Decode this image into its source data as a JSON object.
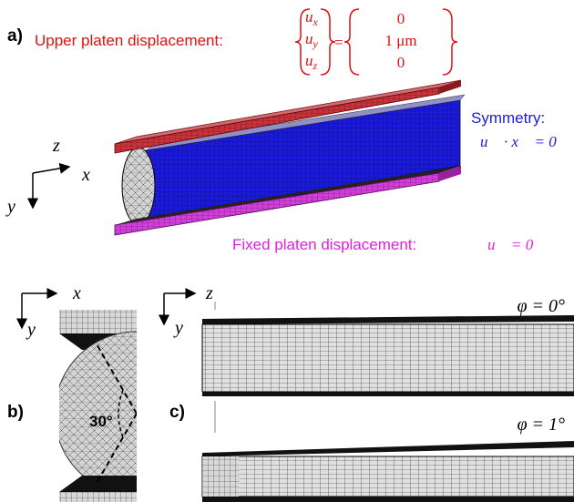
{
  "panel_a": {
    "label": "a)",
    "upper_platen": {
      "text": "Upper platen displacement:",
      "lhs": [
        {
          "base": "u",
          "sub": "x"
        },
        {
          "base": "u",
          "sub": "y"
        },
        {
          "base": "u",
          "sub": "z"
        }
      ],
      "equals": "=",
      "rhs": [
        "0",
        "1 μm",
        "0"
      ]
    },
    "symmetry": {
      "title": "Symmetry:",
      "equation": "u⃗ · x⃗ = 0"
    },
    "fixed_platen": {
      "text": "Fixed platen displacement:",
      "equation": "u⃗ = 0⃗"
    },
    "axes": {
      "z": "z",
      "x": "x",
      "y": "y"
    }
  },
  "panel_b": {
    "label": "b)",
    "axes": {
      "x": "x",
      "y": "y"
    },
    "angle": "30°"
  },
  "panel_c": {
    "label": "c)",
    "axes": {
      "z": "z",
      "y": "y"
    },
    "cases": [
      "φ = 0°",
      "φ = 1°"
    ]
  }
}
